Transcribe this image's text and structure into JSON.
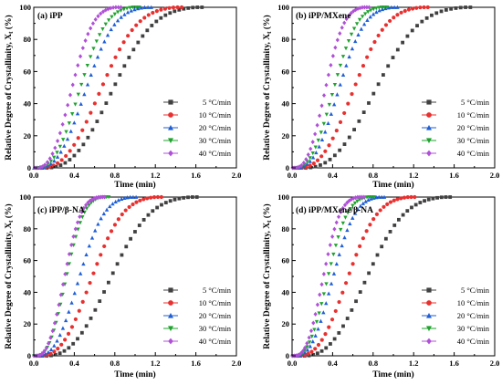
{
  "chart_data": [
    {
      "type": "scatter",
      "panel_label": "(a) iPP",
      "xlabel": "Time (min)",
      "ylabel": "Relative Degree of Crystallinity, X",
      "ylabel_sub": "t",
      "ylabel_unit": " (%)",
      "xlim": [
        0,
        2.0
      ],
      "ylim": [
        0,
        100
      ],
      "xticks": [
        "0.0",
        "0.4",
        "0.8",
        "1.2",
        "1.6",
        "2.0"
      ],
      "yticks": [
        "0",
        "20",
        "40",
        "60",
        "80",
        "100"
      ],
      "legend_position": "bottom-right",
      "series": [
        {
          "name": "5 °C/min",
          "color": "#404040",
          "marker": "square",
          "t_start": 0.1,
          "t_end": 1.6
        },
        {
          "name": "10 °C/min",
          "color": "#e8302f",
          "marker": "circle",
          "t_start": 0.05,
          "t_end": 1.4
        },
        {
          "name": "20 °C/min",
          "color": "#1f5fd6",
          "marker": "triangle-up",
          "t_start": 0.03,
          "t_end": 1.1
        },
        {
          "name": "30 °C/min",
          "color": "#1fa32e",
          "marker": "triangle-down",
          "t_start": 0.02,
          "t_end": 0.98
        },
        {
          "name": "40 °C/min",
          "color": "#b04fd8",
          "marker": "diamond",
          "t_start": 0.02,
          "t_end": 0.8
        }
      ]
    },
    {
      "type": "scatter",
      "panel_label": "(b) iPP/MXene",
      "xlabel": "Time (min)",
      "ylabel": "Relative Degree of Crystallinity, X",
      "ylabel_sub": "t",
      "ylabel_unit": " (%)",
      "xlim": [
        0,
        2.0
      ],
      "ylim": [
        0,
        100
      ],
      "xticks": [
        "0.0",
        "0.4",
        "0.8",
        "1.2",
        "1.6",
        "2.0"
      ],
      "yticks": [
        "0",
        "20",
        "40",
        "60",
        "80",
        "100"
      ],
      "legend_position": "bottom-right",
      "series": [
        {
          "name": "5 °C/min",
          "color": "#404040",
          "marker": "square",
          "t_start": 0.1,
          "t_end": 1.7
        },
        {
          "name": "10 °C/min",
          "color": "#e8302f",
          "marker": "circle",
          "t_start": 0.05,
          "t_end": 1.28
        },
        {
          "name": "20 °C/min",
          "color": "#1f5fd6",
          "marker": "triangle-up",
          "t_start": 0.03,
          "t_end": 0.98
        },
        {
          "name": "30 °C/min",
          "color": "#1fa32e",
          "marker": "triangle-down",
          "t_start": 0.02,
          "t_end": 0.88
        },
        {
          "name": "40 °C/min",
          "color": "#b04fd8",
          "marker": "diamond",
          "t_start": 0.02,
          "t_end": 0.7
        }
      ]
    },
    {
      "type": "scatter",
      "panel_label": "(c) iPP/β-NA",
      "xlabel": "Time (min)",
      "ylabel": "Relative Degree of Crystallinity, X",
      "ylabel_sub": "t",
      "ylabel_unit": " (%)",
      "xlim": [
        0,
        2.0
      ],
      "ylim": [
        0,
        100
      ],
      "xticks": [
        "0.0",
        "0.4",
        "0.8",
        "1.2",
        "1.6",
        "2.0"
      ],
      "yticks": [
        "0",
        "20",
        "40",
        "60",
        "80",
        "100"
      ],
      "legend_position": "bottom-right",
      "series": [
        {
          "name": "5 °C/min",
          "color": "#404040",
          "marker": "square",
          "t_start": 0.1,
          "t_end": 1.55
        },
        {
          "name": "10 °C/min",
          "color": "#e8302f",
          "marker": "circle",
          "t_start": 0.05,
          "t_end": 1.2
        },
        {
          "name": "20 °C/min",
          "color": "#1f5fd6",
          "marker": "triangle-up",
          "t_start": 0.03,
          "t_end": 0.95
        },
        {
          "name": "30 °C/min",
          "color": "#1fa32e",
          "marker": "triangle-down",
          "t_start": 0.02,
          "t_end": 0.68
        },
        {
          "name": "40 °C/min",
          "color": "#b04fd8",
          "marker": "diamond",
          "t_start": 0.02,
          "t_end": 0.64
        }
      ]
    },
    {
      "type": "scatter",
      "panel_label": "(d) iPP/MXene/β-NA",
      "xlabel": "Time (min)",
      "ylabel": "Relative Degree of Crystallinity, X",
      "ylabel_sub": "t",
      "ylabel_unit": " (%)",
      "xlim": [
        0,
        2.0
      ],
      "ylim": [
        0,
        100
      ],
      "xticks": [
        "0.0",
        "0.4",
        "0.8",
        "1.2",
        "1.6",
        "2.0"
      ],
      "yticks": [
        "0",
        "20",
        "40",
        "60",
        "80",
        "100"
      ],
      "legend_position": "bottom-right",
      "series": [
        {
          "name": "5 °C/min",
          "color": "#404040",
          "marker": "square",
          "t_start": 0.1,
          "t_end": 1.5
        },
        {
          "name": "10 °C/min",
          "color": "#e8302f",
          "marker": "circle",
          "t_start": 0.05,
          "t_end": 1.15
        },
        {
          "name": "20 °C/min",
          "color": "#1f5fd6",
          "marker": "triangle-up",
          "t_start": 0.03,
          "t_end": 0.85
        },
        {
          "name": "30 °C/min",
          "color": "#1fa32e",
          "marker": "triangle-down",
          "t_start": 0.02,
          "t_end": 0.75
        },
        {
          "name": "40 °C/min",
          "color": "#b04fd8",
          "marker": "diamond",
          "t_start": 0.02,
          "t_end": 0.65
        }
      ]
    }
  ]
}
